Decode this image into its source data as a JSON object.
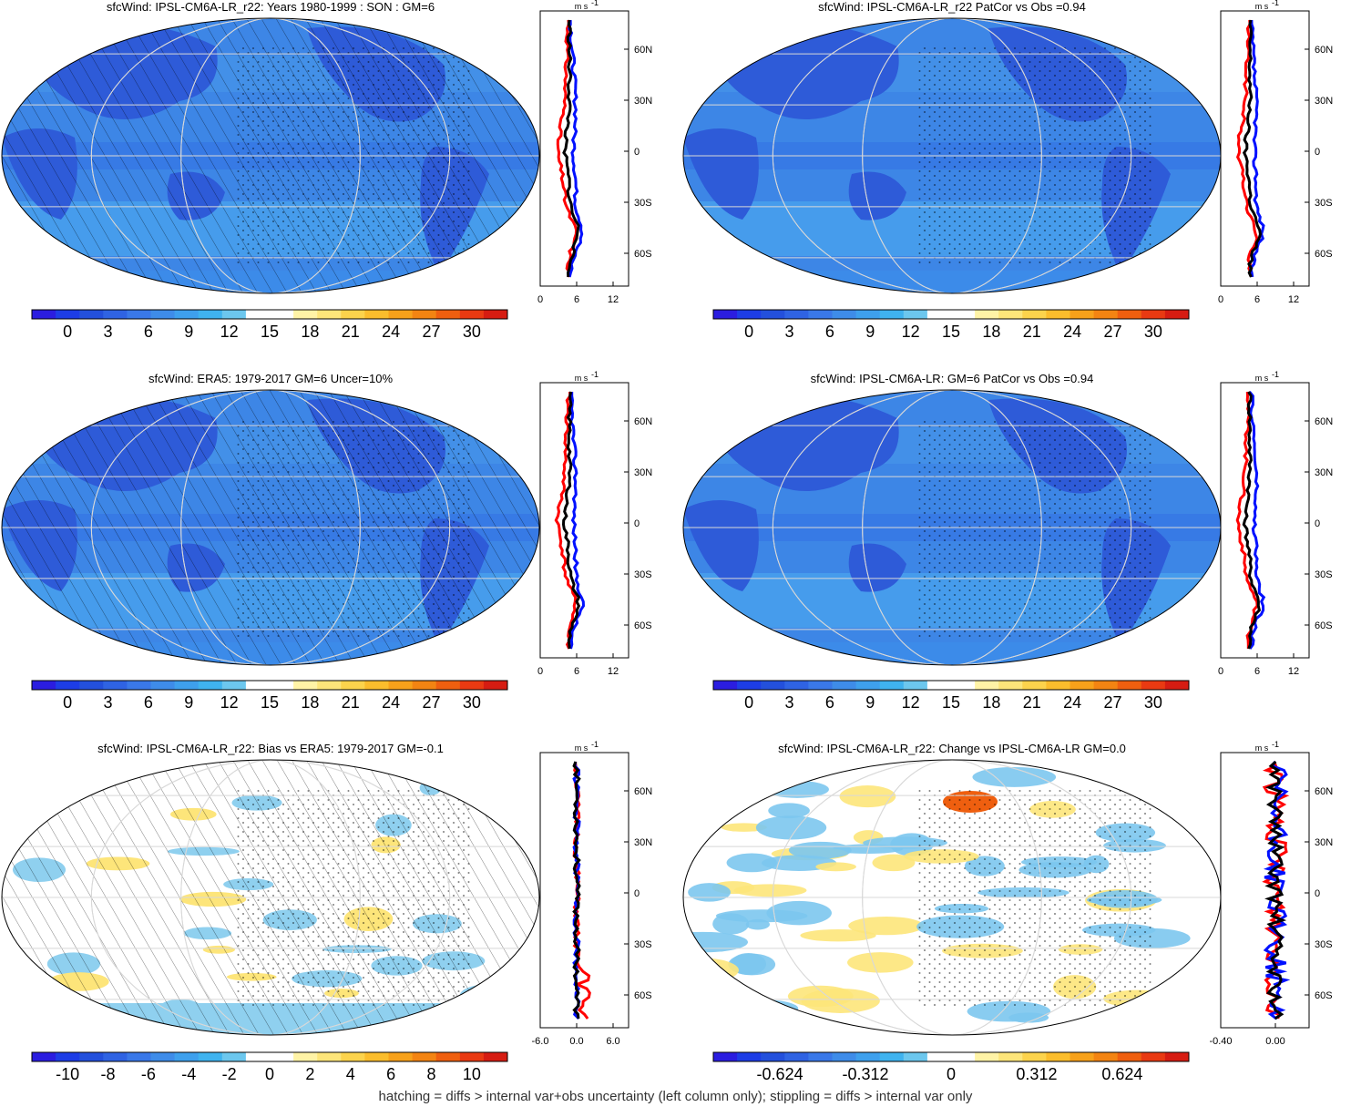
{
  "palette": [
    "#2b1de0",
    "#1d3de6",
    "#2350dc",
    "#2f63e3",
    "#3a78e8",
    "#3e8ce9",
    "#3ea0ed",
    "#3fb3ef",
    "#6cc7ee",
    "#ffffff",
    "#ffffff",
    "#fff3a6",
    "#fde57a",
    "#fcd34c",
    "#fbbd2c",
    "#f7a11a",
    "#f38412",
    "#ef5f0f",
    "#e93a12",
    "#d61c12"
  ],
  "colors": {
    "model_line": "#0010ff",
    "obs_line": "#ff0000",
    "ens_line": "#000000",
    "map_fill": "#3d86e6",
    "map_fill_bias": "#ffffff"
  },
  "lat_labels": [
    "60N",
    "30N",
    "0",
    "30S",
    "60S"
  ],
  "zonal_unit": "m s",
  "footer": "hatching = diffs > internal var+obs uncertainty (left column only); stippling = diffs > internal var only",
  "panels": [
    {
      "title": "sfcWind: IPSL-CM6A-LR_r22: Years 1980-1999 : SON : GM=6",
      "colorbar_ticks": [
        "0",
        "3",
        "6",
        "9",
        "12",
        "15",
        "18",
        "21",
        "24",
        "27",
        "30"
      ],
      "zonal_ticks": [
        "0",
        "6",
        "12"
      ],
      "hatched": true
    },
    {
      "title": "sfcWind: IPSL-CM6A-LR_r22 PatCor vs Obs =0.94",
      "colorbar_ticks": [
        "0",
        "3",
        "6",
        "9",
        "12",
        "15",
        "18",
        "21",
        "24",
        "27",
        "30"
      ],
      "zonal_ticks": [
        "0",
        "6",
        "12"
      ],
      "hatched": false
    },
    {
      "title": "sfcWind: ERA5: 1979-2017 GM=6 Uncer=10%",
      "colorbar_ticks": [
        "0",
        "3",
        "6",
        "9",
        "12",
        "15",
        "18",
        "21",
        "24",
        "27",
        "30"
      ],
      "zonal_ticks": [
        "0",
        "6",
        "12"
      ],
      "hatched": true
    },
    {
      "title": "sfcWind: IPSL-CM6A-LR: GM=6 PatCor vs Obs =0.94",
      "colorbar_ticks": [
        "0",
        "3",
        "6",
        "9",
        "12",
        "15",
        "18",
        "21",
        "24",
        "27",
        "30"
      ],
      "zonal_ticks": [
        "0",
        "6",
        "12"
      ],
      "hatched": false
    },
    {
      "title": "sfcWind: IPSL-CM6A-LR_r22: Bias vs ERA5: 1979-2017  GM=-0.1",
      "colorbar_ticks": [
        "-10",
        "-8",
        "-6",
        "-4",
        "-2",
        "0",
        "2",
        "4",
        "6",
        "8",
        "10"
      ],
      "zonal_ticks": [
        "-6.0",
        "0.0",
        "6.0"
      ],
      "hatched": true
    },
    {
      "title": "sfcWind: IPSL-CM6A-LR_r22: Change vs IPSL-CM6A-LR GM=0.0",
      "colorbar_ticks": [
        "-0.624",
        "-0.312",
        "0",
        "0.312",
        "0.624"
      ],
      "zonal_ticks": [
        "-0.40",
        "0.00"
      ],
      "hatched": false
    }
  ]
}
